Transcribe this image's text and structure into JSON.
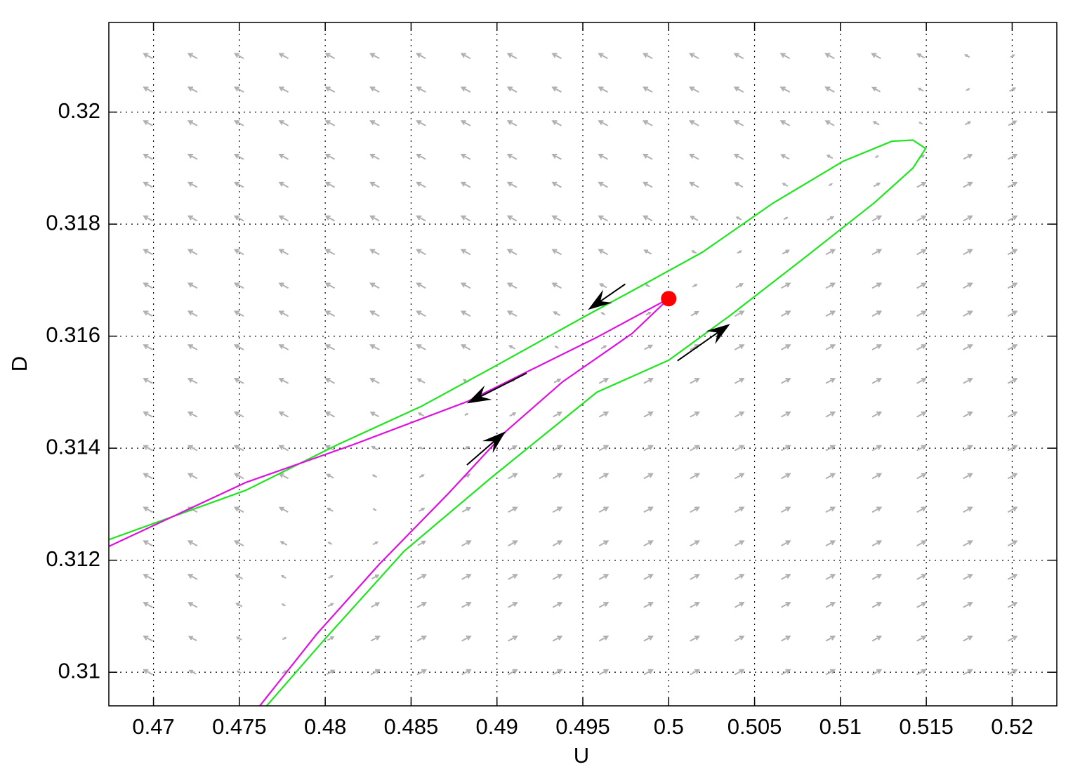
{
  "chart_data": {
    "type": "line",
    "xlabel": "U",
    "ylabel": "D",
    "xlim": [
      0.4674,
      0.5226
    ],
    "ylim": [
      0.3094,
      0.3216
    ],
    "xticks": [
      0.47,
      0.475,
      0.48,
      0.485,
      0.49,
      0.495,
      0.5,
      0.505,
      0.51,
      0.515,
      0.52
    ],
    "yticks": [
      0.31,
      0.312,
      0.314,
      0.316,
      0.318,
      0.32
    ],
    "grid": true,
    "series": [
      {
        "color": "#1ee61e",
        "x": [
          0.47659,
          0.48,
          0.48459,
          0.48969,
          0.49582,
          0.5,
          0.50358,
          0.50808,
          0.51197,
          0.51422,
          0.51496,
          0.51422,
          0.513,
          0.51014,
          0.50605,
          0.50197,
          0.49788,
          0.49522,
          0.48969,
          0.48561,
          0.4807,
          0.47539,
          0.46742
        ],
        "values": [
          0.3094,
          0.3106,
          0.31216,
          0.31348,
          0.315,
          0.31557,
          0.31637,
          0.31744,
          0.31838,
          0.319,
          0.31935,
          0.3195,
          0.31948,
          0.31912,
          0.31837,
          0.3175,
          0.31681,
          0.31637,
          0.31543,
          0.31475,
          0.31406,
          0.31325,
          0.31237
        ]
      },
      {
        "color": "#e010e0",
        "x": [
          0.46742,
          0.47539,
          0.48151,
          0.48825,
          0.49173,
          0.49582,
          0.5,
          0.49788,
          0.4938,
          0.49052,
          0.4872,
          0.48315,
          0.4795,
          0.47619
        ],
        "values": [
          0.31225,
          0.31339,
          0.31405,
          0.31483,
          0.31536,
          0.31598,
          0.31667,
          0.31605,
          0.31518,
          0.3143,
          0.3132,
          0.31193,
          0.31068,
          0.3094
        ]
      }
    ],
    "points": {
      "color": "#ff0000",
      "x": [
        0.5
      ],
      "values": [
        0.31667
      ]
    },
    "arrows": {
      "color": "#000000",
      "x0": [
        0.49747,
        0.49173,
        0.48825,
        0.50051
      ],
      "y0": [
        0.31693,
        0.31534,
        0.3137,
        0.31556
      ],
      "x1": [
        0.4953,
        0.48825,
        0.4905,
        0.50358
      ],
      "y1": [
        0.31647,
        0.3148,
        0.3143,
        0.31622
      ]
    },
    "quiver": {
      "color": "#b0b0b0",
      "x": [
        0.4697,
        0.4723,
        0.475,
        0.4776,
        0.4803,
        0.4829,
        0.4856,
        0.4882,
        0.4909,
        0.4935,
        0.4962,
        0.4988,
        0.5015,
        0.5041,
        0.5068,
        0.5094,
        0.5121,
        0.5147,
        0.5174,
        0.52
      ],
      "y": [
        0.31,
        0.3106,
        0.3112,
        0.3117,
        0.3123,
        0.3129,
        0.3135,
        0.314,
        0.3146,
        0.3152,
        0.3158,
        0.3164,
        0.3169,
        0.3175,
        0.3181,
        0.3187,
        0.3192,
        0.3198,
        0.3204,
        0.321
      ],
      "split": [
        0.476,
        0.477,
        0.478,
        0.479,
        0.481,
        0.483,
        0.484,
        0.486,
        0.488,
        0.49,
        0.494,
        0.497,
        0.5,
        0.503,
        0.506,
        0.509,
        0.512,
        0.515,
        0.517,
        0.519
      ]
    }
  }
}
